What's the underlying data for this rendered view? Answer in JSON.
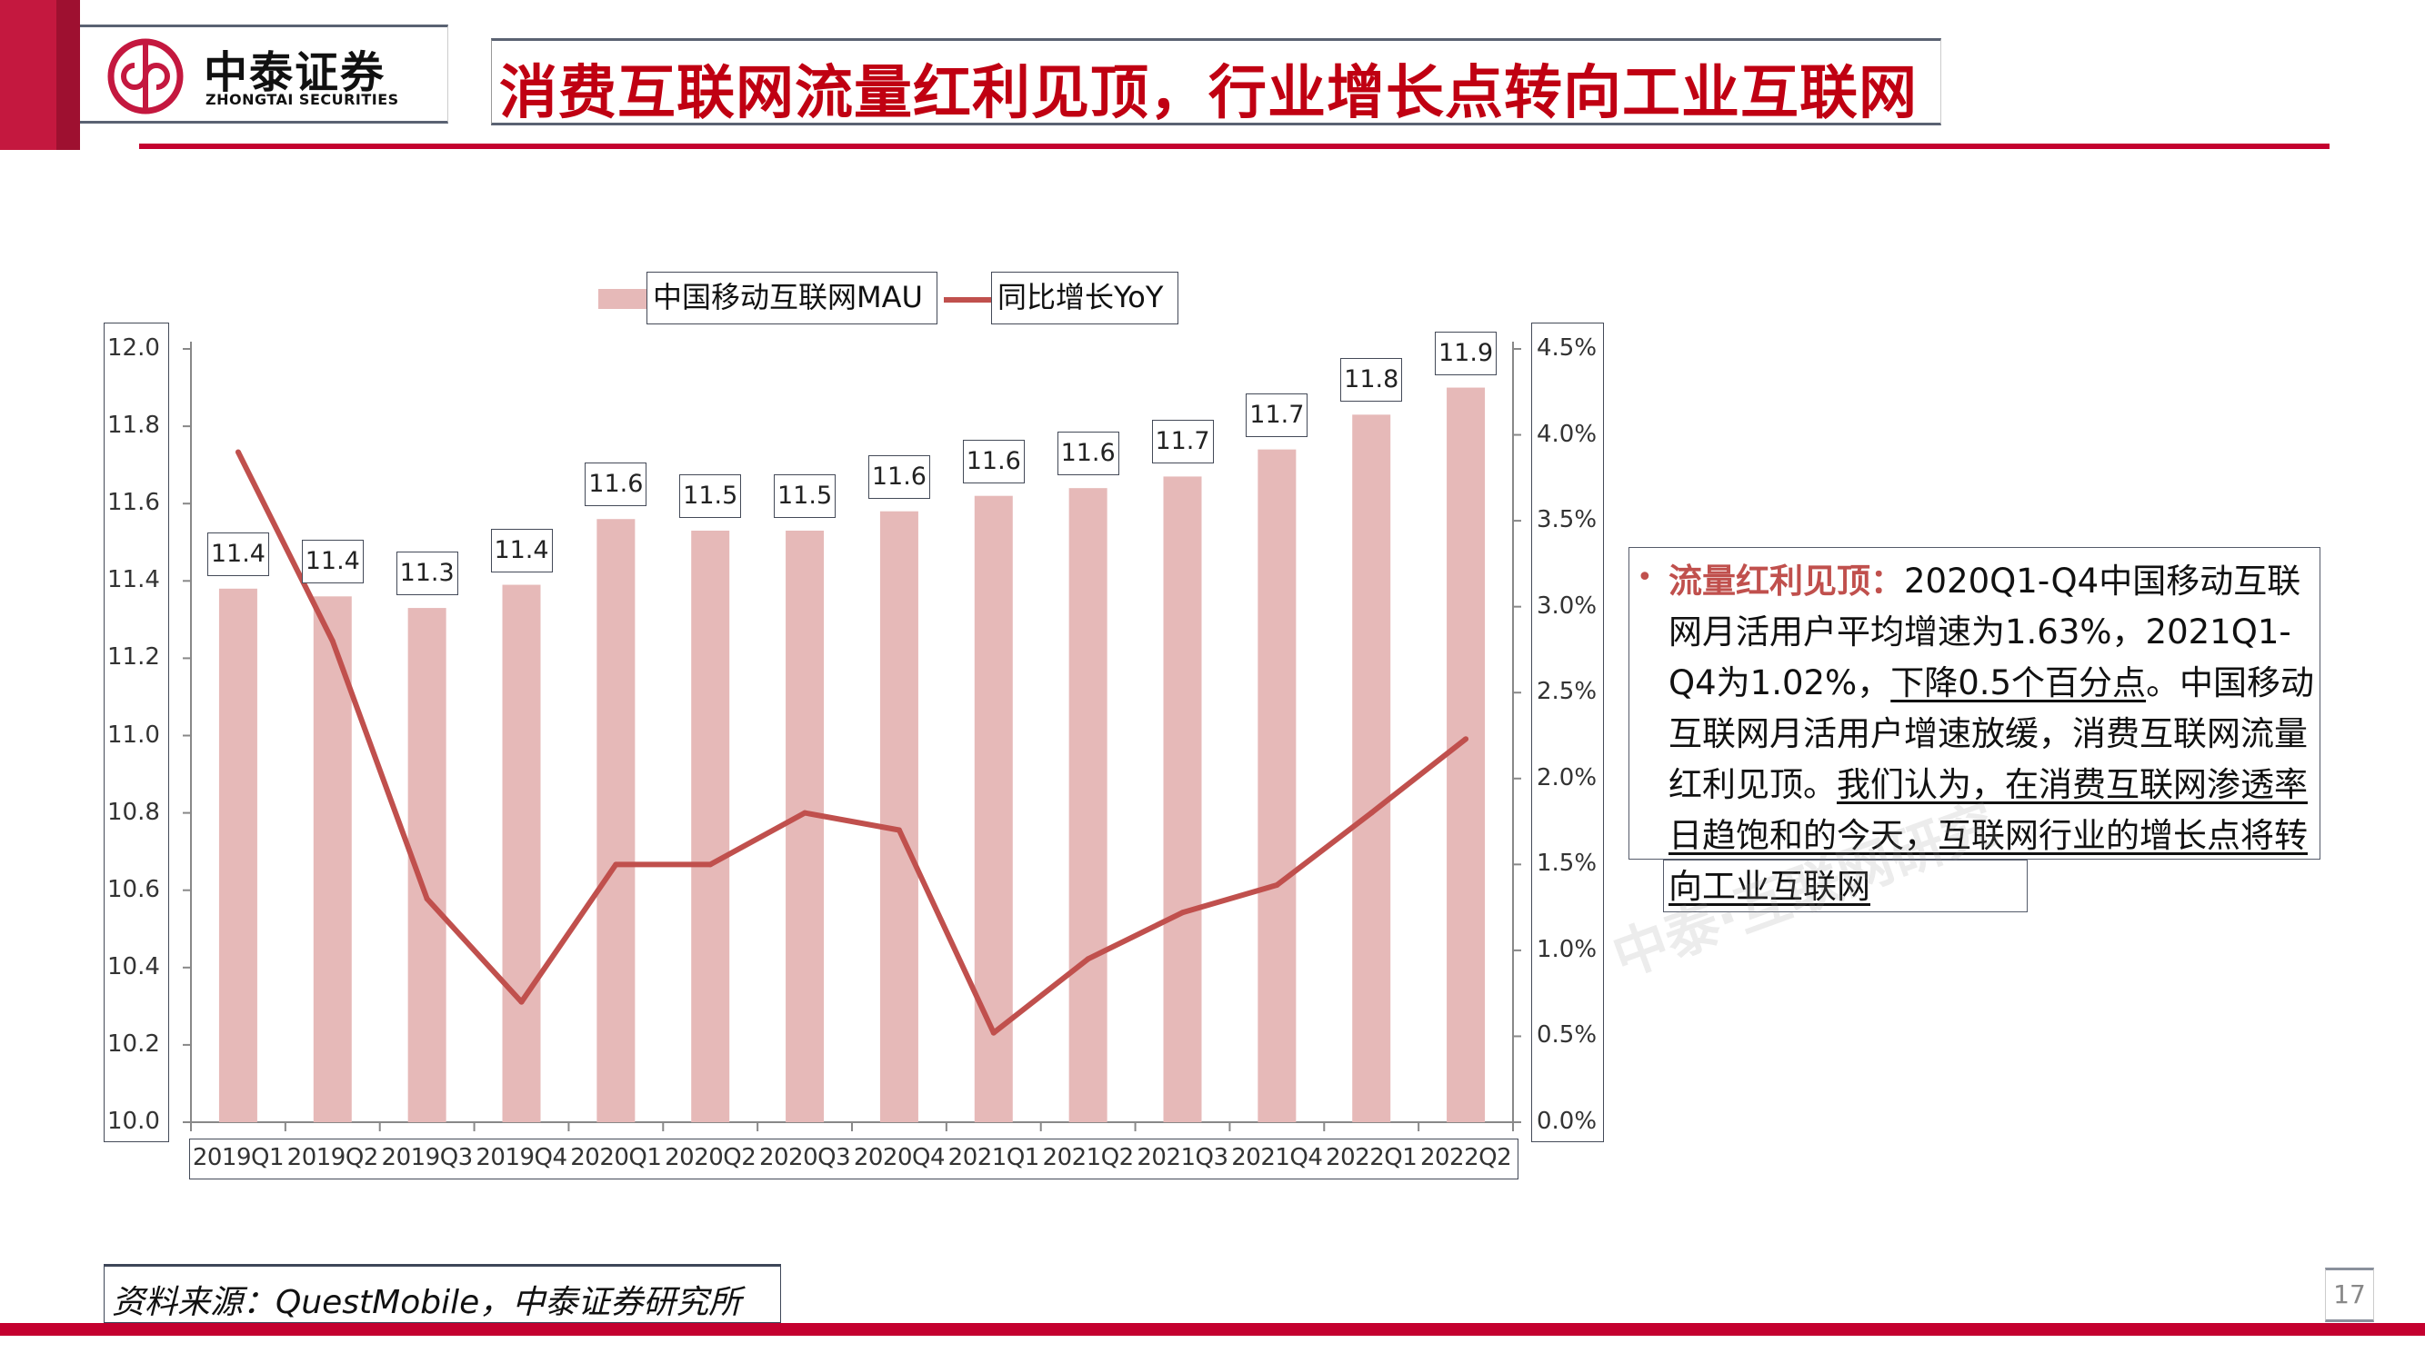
{
  "header": {
    "logo_cn": "中泰证券",
    "logo_en": "ZHONGTAI SECURITIES",
    "title": "消费互联网流量红利见顶，行业增长点转向工业互联网"
  },
  "colors": {
    "brand_red": "#c4002f",
    "title_red": "#c00012",
    "bar": "#e6b9b8",
    "line": "#c0504d"
  },
  "chart_data": {
    "type": "bar+line",
    "categories": [
      "2019Q1",
      "2019Q2",
      "2019Q3",
      "2019Q4",
      "2020Q1",
      "2020Q2",
      "2020Q3",
      "2020Q4",
      "2021Q1",
      "2021Q2",
      "2021Q3",
      "2021Q4",
      "2022Q1",
      "2022Q2"
    ],
    "series": [
      {
        "name": "中国移动互联网MAU",
        "type": "bar",
        "axis": "left",
        "values": [
          11.38,
          11.36,
          11.33,
          11.39,
          11.56,
          11.53,
          11.53,
          11.58,
          11.62,
          11.64,
          11.67,
          11.74,
          11.83,
          11.9
        ],
        "data_labels": [
          "11.4",
          "11.4",
          "11.3",
          "11.4",
          "11.6",
          "11.5",
          "11.5",
          "11.6",
          "11.6",
          "11.6",
          "11.7",
          "11.7",
          "11.8",
          "11.9"
        ]
      },
      {
        "name": "同比增长YoY",
        "type": "line",
        "axis": "right",
        "values": [
          3.9,
          2.8,
          1.3,
          0.7,
          1.5,
          1.5,
          1.8,
          1.7,
          0.52,
          0.95,
          1.22,
          1.38,
          1.8,
          2.23
        ]
      }
    ],
    "left_axis": {
      "min": 10.0,
      "max": 12.0,
      "ticks": [
        "10.0",
        "10.2",
        "10.4",
        "10.6",
        "10.8",
        "11.0",
        "11.2",
        "11.4",
        "11.6",
        "11.8",
        "12.0"
      ]
    },
    "right_axis": {
      "min": 0,
      "max": 4.5,
      "unit": "%",
      "ticks": [
        "0.0%",
        "0.5%",
        "1.0%",
        "1.5%",
        "2.0%",
        "2.5%",
        "3.0%",
        "3.5%",
        "4.0%",
        "4.5%"
      ]
    },
    "legend": {
      "placement": "top",
      "items": [
        "中国移动互联网MAU",
        "同比增长YoY"
      ]
    },
    "grid": false
  },
  "note": {
    "bullet": "•",
    "heading": "流量红利见顶：",
    "text1": "2020Q1-Q4中国移动互联网月活用户平均增速为1.63%，2021Q1-Q4为1.02%，",
    "underline1": "下降0.5个百分点",
    "text2": "。中国移动互联网月活用户增速放缓，消费互联网流量红利见顶。",
    "underline2": "我们认为，在消费互联网渗透率日趋饱和的今天，互联网行业的增长点将转向工业互联网"
  },
  "footer": {
    "source": "资料来源：QuestMobile，中泰证券研究所",
    "page": "17"
  },
  "watermark": "中泰·互联网研究"
}
